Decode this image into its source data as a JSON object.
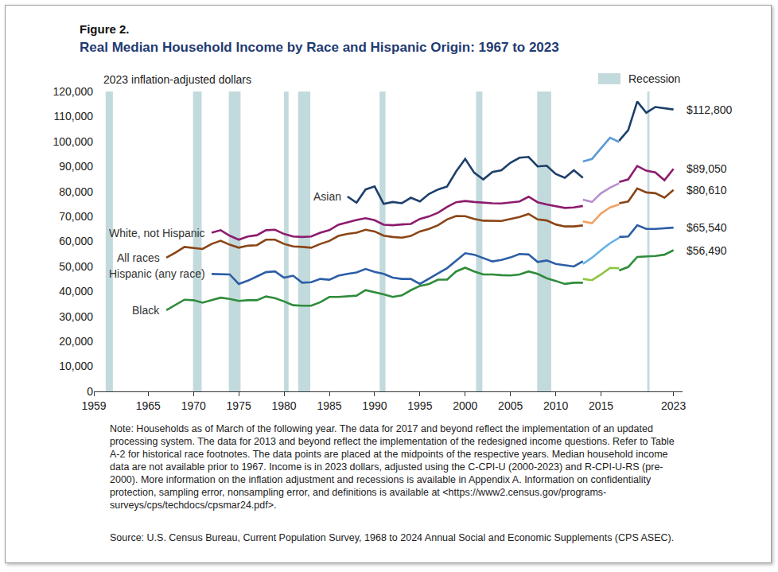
{
  "chart_data": {
    "type": "line",
    "figure_number": "Figure 2.",
    "title": "Real Median Household Income by Race and Hispanic Origin: 1967 to 2023",
    "y_label": "2023 inflation-adjusted dollars",
    "notes": "Note: Households as of March of the following year. The data for 2017 and beyond reflect the implementation of an updated processing system. The data for 2013 and beyond reflect the implementation of the redesigned income questions. Refer to Table A-2 for historical race footnotes. The data points are placed at the midpoints of the respective years. Median household income data are not available prior to 1967. Income is in 2023 dollars, adjusted using the C-CPI-U (2000-2023) and R-CPI-U-RS (pre-2000). More information on the inflation adjustment and recessions is available in Appendix A. Information on confidentiality protection, sampling error, nonsampling error, and definitions is available at <https://www2.census.gov/programs-surveys/cps/techdocs/cpsmar24.pdf>.",
    "source": "Source: U.S. Census Bureau, Current Population Survey, 1968 to 2024 Annual Social and Economic Supplements (CPS ASEC).",
    "recessions": {
      "label": "Recession",
      "color": "#c3dadd",
      "periods": [
        [
          1960.3,
          1961.1
        ],
        [
          1969.95,
          1970.9
        ],
        [
          1973.9,
          1975.2
        ],
        [
          1980.0,
          1980.5
        ],
        [
          1981.55,
          1982.9
        ],
        [
          1990.55,
          1991.2
        ],
        [
          2001.2,
          2001.9
        ],
        [
          2007.95,
          2009.5
        ],
        [
          2020.1,
          2020.35
        ]
      ]
    },
    "xlim": [
      1959,
      2024
    ],
    "xticks": [
      1959,
      1965,
      1970,
      1975,
      1980,
      1985,
      1990,
      1995,
      2000,
      2005,
      2010,
      2015,
      2023
    ],
    "ylim": [
      0,
      120000
    ],
    "yticks": [
      0,
      {
        "value": 10000,
        "label": "10,000"
      },
      {
        "value": 20000,
        "label": "20,000"
      },
      {
        "value": 30000,
        "label": "30,000"
      },
      {
        "value": 40000,
        "label": "40,000"
      },
      {
        "value": 50000,
        "label": "50,000"
      },
      {
        "value": 60000,
        "label": "60,000"
      },
      {
        "value": 70000,
        "label": "70,000"
      },
      {
        "value": 80000,
        "label": "80,000"
      },
      {
        "value": 90000,
        "label": "90,000"
      },
      {
        "value": 100000,
        "label": "100,000"
      },
      {
        "value": 110000,
        "label": "110,000"
      },
      {
        "value": 120000,
        "label": "120,000"
      }
    ],
    "grid": false,
    "series": [
      {
        "name": "Asian",
        "color": "#1d3f6b",
        "x": [
          1987,
          1988,
          1989,
          1990,
          1991,
          1992,
          1993,
          1994,
          1995,
          1996,
          1997,
          1998,
          1999,
          2000,
          2001,
          2002,
          2003,
          2004,
          2005,
          2006,
          2007,
          2008,
          2009,
          2010,
          2011,
          2012,
          2013
        ],
        "values": [
          78000,
          75500,
          80800,
          82000,
          75000,
          75800,
          75300,
          77500,
          76000,
          79000,
          80800,
          82000,
          88000,
          93000,
          87500,
          84800,
          87800,
          88500,
          91500,
          93500,
          93800,
          90000,
          90300,
          87000,
          85500,
          88500,
          85500
        ]
      },
      {
        "name": "Asian",
        "color": "#5b9ad6",
        "x": [
          2013,
          2014,
          2015,
          2016,
          2017
        ],
        "values": [
          92000,
          93000,
          97300,
          101500,
          99800
        ]
      },
      {
        "name": "Asian",
        "color": "#1d3f6b",
        "x": [
          2017,
          2018,
          2019,
          2020,
          2021,
          2022,
          2023
        ],
        "values": [
          100300,
          104500,
          116000,
          111500,
          113800,
          113200,
          112800
        ],
        "value_labels": [
          null,
          null,
          null,
          null,
          null,
          null,
          "$112,800"
        ]
      },
      {
        "name": "White, not Hispanic",
        "color": "#8c1c6e",
        "x": [
          1972,
          1973,
          1974,
          1975,
          1976,
          1977,
          1978,
          1979,
          1980,
          1981,
          1982,
          1983,
          1984,
          1985,
          1986,
          1987,
          1988,
          1989,
          1990,
          1991,
          1992,
          1993,
          1994,
          1995,
          1996,
          1997,
          1998,
          1999,
          2000,
          2001,
          2002,
          2003,
          2004,
          2005,
          2006,
          2007,
          2008,
          2009,
          2010,
          2011,
          2012,
          2013
        ],
        "values": [
          63500,
          64500,
          62300,
          60700,
          62000,
          62500,
          64500,
          64700,
          63000,
          62000,
          61800,
          62000,
          63500,
          64500,
          66700,
          67700,
          68600,
          69300,
          68500,
          66700,
          66500,
          66800,
          67000,
          69000,
          70000,
          71500,
          73800,
          75700,
          76200,
          75800,
          75500,
          75300,
          75200,
          75700,
          76000,
          77900,
          75700,
          74800,
          74200,
          73400,
          73600,
          74200
        ]
      },
      {
        "name": "White, not Hispanic",
        "color": "#b68fd0",
        "x": [
          2013,
          2014,
          2015,
          2016,
          2017
        ],
        "values": [
          76700,
          75800,
          79300,
          81500,
          83300
        ]
      },
      {
        "name": "White, not Hispanic",
        "color": "#8c1c6e",
        "x": [
          2017,
          2018,
          2019,
          2020,
          2021,
          2022,
          2023
        ],
        "values": [
          83800,
          84800,
          90200,
          88300,
          87600,
          84500,
          89050
        ],
        "value_labels": [
          null,
          null,
          null,
          null,
          null,
          null,
          "$89,050"
        ]
      },
      {
        "name": "All races",
        "color": "#8a4516",
        "x": [
          1967,
          1968,
          1969,
          1970,
          1971,
          1972,
          1973,
          1974,
          1975,
          1976,
          1977,
          1978,
          1979,
          1980,
          1981,
          1982,
          1983,
          1984,
          1985,
          1986,
          1987,
          1988,
          1989,
          1990,
          1991,
          1992,
          1993,
          1994,
          1995,
          1996,
          1997,
          1998,
          1999,
          2000,
          2001,
          2002,
          2003,
          2004,
          2005,
          2006,
          2007,
          2008,
          2009,
          2010,
          2011,
          2012,
          2013
        ],
        "values": [
          53500,
          55500,
          57800,
          57500,
          57000,
          59000,
          60300,
          58700,
          57500,
          58300,
          58500,
          60700,
          60700,
          59000,
          58000,
          57800,
          57500,
          59000,
          60200,
          62200,
          63000,
          63500,
          64700,
          64000,
          62300,
          61800,
          61500,
          62200,
          64000,
          65000,
          66500,
          68800,
          70200,
          70100,
          69000,
          68300,
          68300,
          68200,
          69000,
          69800,
          71000,
          68800,
          68400,
          66800,
          66000,
          66000,
          66400
        ]
      },
      {
        "name": "All races",
        "color": "#f0a264",
        "x": [
          2013,
          2014,
          2015,
          2016,
          2017
        ],
        "values": [
          68000,
          67300,
          71200,
          73600,
          74800
        ]
      },
      {
        "name": "All races",
        "color": "#8a4516",
        "x": [
          2017,
          2018,
          2019,
          2020,
          2021,
          2022,
          2023
        ],
        "values": [
          75300,
          76000,
          81200,
          79600,
          79300,
          77500,
          80610
        ],
        "value_labels": [
          null,
          null,
          null,
          null,
          null,
          null,
          "$80,610"
        ]
      },
      {
        "name": "Hispanic (any race)",
        "color": "#2d5ea6",
        "x": [
          1972,
          1973,
          1974,
          1975,
          1976,
          1977,
          1978,
          1979,
          1980,
          1981,
          1982,
          1983,
          1984,
          1985,
          1986,
          1987,
          1988,
          1989,
          1990,
          1991,
          1992,
          1993,
          1994,
          1995,
          1996,
          1997,
          1998,
          1999,
          2000,
          2001,
          2002,
          2003,
          2004,
          2005,
          2006,
          2007,
          2008,
          2009,
          2010,
          2011,
          2012,
          2013
        ],
        "values": [
          47000,
          47000,
          46800,
          43000,
          44300,
          46000,
          47700,
          48000,
          45500,
          46300,
          43500,
          43700,
          45000,
          44700,
          46300,
          47000,
          47600,
          49000,
          47800,
          47000,
          45500,
          45000,
          45000,
          43000,
          45000,
          47200,
          49300,
          52400,
          55300,
          54700,
          53300,
          52000,
          52600,
          53600,
          55000,
          54800,
          51800,
          52400,
          51000,
          50500,
          50000,
          52100
        ]
      },
      {
        "name": "Hispanic (any race)",
        "color": "#67b2ea",
        "x": [
          2013,
          2014,
          2015,
          2016,
          2017
        ],
        "values": [
          51000,
          53500,
          56500,
          59300,
          61500
        ]
      },
      {
        "name": "Hispanic (any race)",
        "color": "#2d5ea6",
        "x": [
          2017,
          2018,
          2019,
          2020,
          2021,
          2022,
          2023
        ],
        "values": [
          61800,
          62000,
          66500,
          65000,
          65000,
          65300,
          65540
        ],
        "value_labels": [
          null,
          null,
          null,
          null,
          null,
          null,
          "$65,540"
        ]
      },
      {
        "name": "Black",
        "color": "#2f8c3b",
        "x": [
          1967,
          1968,
          1969,
          1970,
          1971,
          1972,
          1973,
          1974,
          1975,
          1976,
          1977,
          1978,
          1979,
          1980,
          1981,
          1982,
          1983,
          1984,
          1985,
          1986,
          1987,
          1988,
          1989,
          1990,
          1991,
          1992,
          1993,
          1994,
          1995,
          1996,
          1997,
          1998,
          1999,
          2000,
          2001,
          2002,
          2003,
          2004,
          2005,
          2006,
          2007,
          2008,
          2009,
          2010,
          2011,
          2012,
          2013
        ],
        "values": [
          32500,
          34500,
          36700,
          36500,
          35500,
          36500,
          37500,
          37000,
          36200,
          36500,
          36500,
          38000,
          37300,
          36000,
          34500,
          34300,
          34300,
          35700,
          37800,
          37800,
          38000,
          38300,
          40500,
          39700,
          38800,
          37800,
          38400,
          40500,
          42200,
          43000,
          44700,
          44700,
          48000,
          49500,
          48000,
          46800,
          46800,
          46500,
          46400,
          46800,
          48000,
          47000,
          45300,
          44200,
          43000,
          43500,
          43500
        ]
      },
      {
        "name": "Black",
        "color": "#8dc640",
        "x": [
          2013,
          2014,
          2015,
          2016,
          2017
        ],
        "values": [
          45000,
          44500,
          46800,
          49400,
          49300
        ]
      },
      {
        "name": "Black",
        "color": "#2f8c3b",
        "x": [
          2017,
          2018,
          2019,
          2020,
          2021,
          2022,
          2023
        ],
        "values": [
          48400,
          49800,
          53800,
          53900,
          54200,
          54700,
          56490
        ],
        "value_labels": [
          null,
          null,
          null,
          null,
          null,
          null,
          "$56,490"
        ]
      }
    ]
  }
}
